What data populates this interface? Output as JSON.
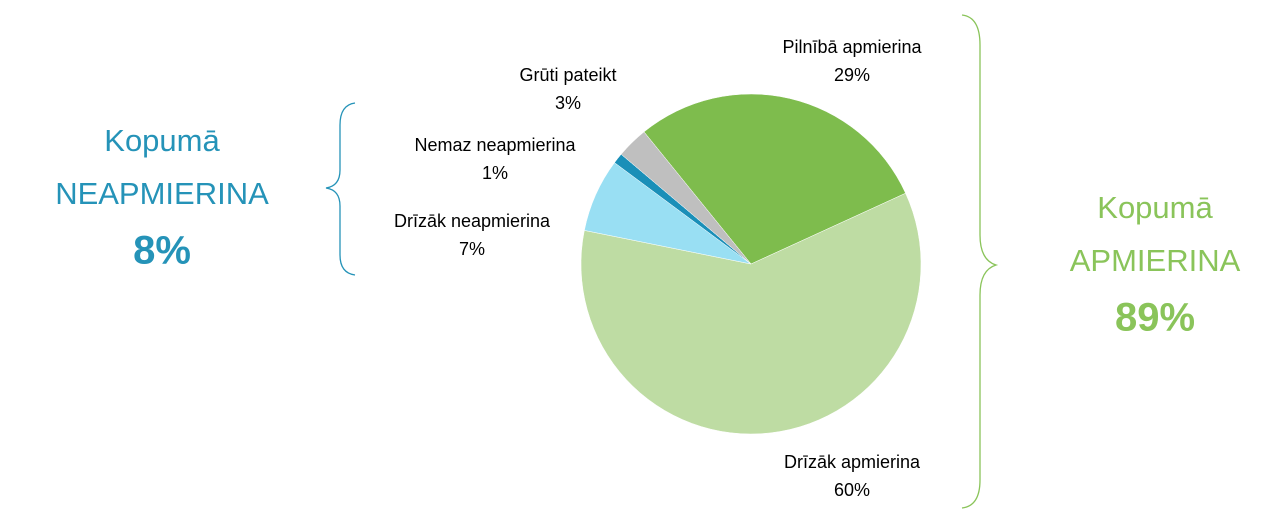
{
  "chart_data": {
    "type": "pie",
    "categories": [
      "Pilnībā apmierina",
      "Drīzāk apmierina",
      "Drīzāk neapmierina",
      "Nemaz neapmierina",
      "Grūti pateikt"
    ],
    "values": [
      29,
      60,
      7,
      1,
      3
    ],
    "value_labels": [
      "29%",
      "60%",
      "7%",
      "1%",
      "3%"
    ],
    "colors": [
      "#7ebc4d",
      "#bedca3",
      "#99dff3",
      "#1a8fb8",
      "#bfbfbf"
    ],
    "annotations": [
      {
        "lines": [
          "Kopumā",
          "NEAPMIERINA"
        ],
        "total": "8%",
        "color": "#2593b8"
      },
      {
        "lines": [
          "Kopumā",
          "APMIERINA"
        ],
        "total": "89%",
        "color": "#8ac45a"
      }
    ]
  }
}
